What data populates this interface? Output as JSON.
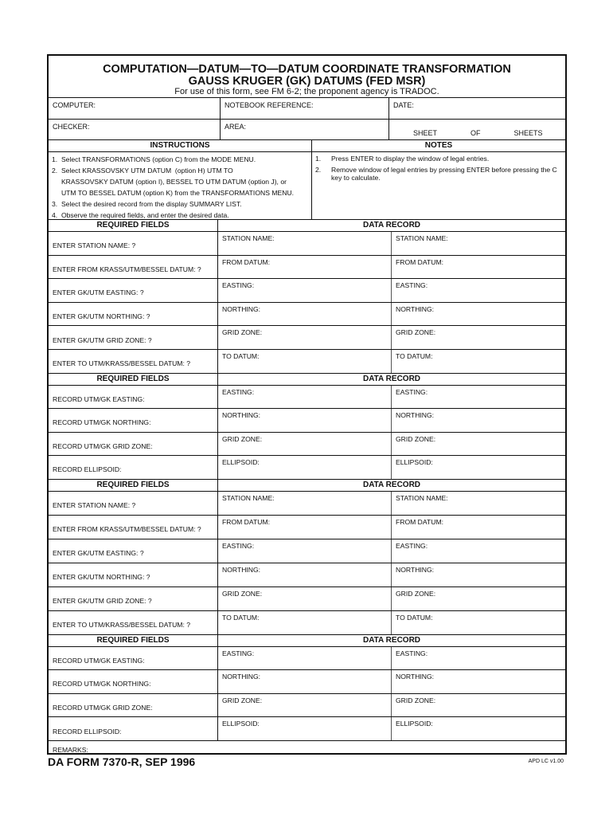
{
  "header": {
    "title": "COMPUTATION—DATUM—TO—DATUM COORDINATE TRANSFORMATION",
    "subtitle": "GAUSS KRUGER (GK) DATUMS (FED MSR)",
    "usage": "For use of this form, see FM 6-2; the proponent agency is TRADOC."
  },
  "info": {
    "computer": "COMPUTER:",
    "notebook": "NOTEBOOK REFERENCE:",
    "date": "DATE:",
    "checker": "CHECKER:",
    "area": "AREA:",
    "sheet": "SHEET",
    "of": "OF",
    "sheets": "SHEETS"
  },
  "instructions": {
    "heading": "INSTRUCTIONS",
    "items": [
      "1.  Select TRANSFORMATIONS (option C) from the MODE MENU.",
      "2.  Select KRASSOVSKY UTM DATUM  (option H) UTM TO",
      "     KRASSOVSKY DATUM (option I), BESSEL TO UTM DATUM (option J), or",
      "     UTM TO BESSEL DATUM (option K) from the TRANSFORMATIONS MENU.",
      "3.  Select the desired record from the display SUMMARY LIST.",
      "4.  Observe the required fields, and enter the desired data."
    ]
  },
  "notes": {
    "heading": "NOTES",
    "items": [
      {
        "num": "1.",
        "text": "Press ENTER to display the window of legal entries."
      },
      {
        "num": "2.",
        "text": "Remove window of legal entries by pressing ENTER before pressing the C key to calculate."
      }
    ]
  },
  "sections": [
    {
      "req_heading": "REQUIRED FIELDS",
      "data_heading": "DATA RECORD",
      "rows": [
        {
          "req": "ENTER STATION NAME:  ?",
          "data": "STATION NAME:"
        },
        {
          "req": "ENTER FROM KRASS/UTM/BESSEL DATUM:  ?",
          "data": "FROM DATUM:"
        },
        {
          "req": "ENTER GK/UTM EASTING:  ?",
          "data": "EASTING:"
        },
        {
          "req": "ENTER GK/UTM NORTHING:  ?",
          "data": "NORTHING:"
        },
        {
          "req": "ENTER GK/UTM GRID ZONE:  ?",
          "data": "GRID ZONE:"
        },
        {
          "req": "ENTER TO UTM/KRASS/BESSEL DATUM:  ?",
          "data": "TO DATUM:"
        }
      ]
    },
    {
      "req_heading": "REQUIRED FIELDS",
      "data_heading": "DATA RECORD",
      "rows": [
        {
          "req": "RECORD UTM/GK EASTING:",
          "data": "EASTING:"
        },
        {
          "req": "RECORD UTM/GK NORTHING:",
          "data": "NORTHING:"
        },
        {
          "req": "RECORD UTM/GK GRID ZONE:",
          "data": "GRID ZONE:"
        },
        {
          "req": "RECORD ELLIPSOID:",
          "data": "ELLIPSOID:"
        }
      ]
    },
    {
      "req_heading": "REQUIRED FIELDS",
      "data_heading": "DATA RECORD",
      "rows": [
        {
          "req": "ENTER STATION NAME:  ?",
          "data": "STATION NAME:"
        },
        {
          "req": "ENTER FROM KRASS/UTM/BESSEL DATUM:  ?",
          "data": "FROM DATUM:"
        },
        {
          "req": "ENTER GK/UTM EASTING:  ?",
          "data": "EASTING:"
        },
        {
          "req": "ENTER GK/UTM NORTHING:  ?",
          "data": "NORTHING:"
        },
        {
          "req": "ENTER GK/UTM GRID ZONE:  ?",
          "data": "GRID ZONE:"
        },
        {
          "req": "ENTER TO UTM/KRASS/BESSEL DATUM:  ?",
          "data": "TO DATUM:"
        }
      ]
    },
    {
      "req_heading": "REQUIRED FIELDS",
      "data_heading": "DATA RECORD",
      "rows": [
        {
          "req": "RECORD UTM/GK EASTING:",
          "data": "EASTING:"
        },
        {
          "req": "RECORD UTM/GK NORTHING:",
          "data": "NORTHING:"
        },
        {
          "req": "RECORD UTM/GK GRID ZONE:",
          "data": "GRID ZONE:"
        },
        {
          "req": "RECORD ELLIPSOID:",
          "data": "ELLIPSOID:"
        }
      ]
    }
  ],
  "remarks": "REMARKS:",
  "footer": {
    "form_id": "DA FORM 7370-R, SEP 1996",
    "version": "APD LC v1.00"
  }
}
